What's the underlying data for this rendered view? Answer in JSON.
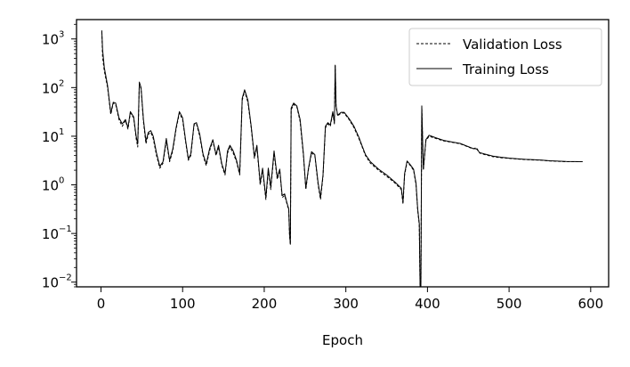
{
  "chart_data": {
    "type": "line",
    "xlabel": "Epoch",
    "ylabel": "",
    "title": "",
    "xlim": [
      -30,
      622
    ],
    "ylim": [
      0.008,
      2500
    ],
    "yscale": "log",
    "grid": false,
    "legend_position": "top-right",
    "x_ticks": [
      0,
      100,
      200,
      300,
      400,
      500,
      600
    ],
    "x_tick_labels": [
      "0",
      "100",
      "200",
      "300",
      "400",
      "500",
      "600"
    ],
    "y_ticks": [
      {
        "value": 0.01,
        "base": "10",
        "exp": "−2"
      },
      {
        "value": 0.1,
        "base": "10",
        "exp": "−1"
      },
      {
        "value": 1,
        "base": "10",
        "exp": "0"
      },
      {
        "value": 10,
        "base": "10",
        "exp": "1"
      },
      {
        "value": 100,
        "base": "10",
        "exp": "2"
      },
      {
        "value": 1000,
        "base": "10",
        "exp": "3"
      }
    ],
    "series": [
      {
        "name": "Validation Loss",
        "style": "dashed",
        "color": "#000000",
        "points": [
          [
            1,
            1400
          ],
          [
            2,
            420
          ],
          [
            4,
            220
          ],
          [
            8,
            100
          ],
          [
            12,
            28
          ],
          [
            15,
            48
          ],
          [
            18,
            45
          ],
          [
            22,
            22
          ],
          [
            26,
            16
          ],
          [
            30,
            21
          ],
          [
            33,
            14
          ],
          [
            36,
            30
          ],
          [
            40,
            24
          ],
          [
            43,
            9
          ],
          [
            45,
            6
          ],
          [
            47,
            120
          ],
          [
            49,
            95
          ],
          [
            52,
            20
          ],
          [
            55,
            7
          ],
          [
            58,
            11
          ],
          [
            61,
            12
          ],
          [
            64,
            9
          ],
          [
            68,
            4
          ],
          [
            72,
            2.2
          ],
          [
            76,
            2.8
          ],
          [
            80,
            8
          ],
          [
            84,
            3
          ],
          [
            88,
            5
          ],
          [
            92,
            14
          ],
          [
            96,
            30
          ],
          [
            100,
            22
          ],
          [
            104,
            7
          ],
          [
            107,
            3.2
          ],
          [
            110,
            4
          ],
          [
            114,
            17
          ],
          [
            117,
            18
          ],
          [
            121,
            10
          ],
          [
            125,
            4
          ],
          [
            129,
            2.5
          ],
          [
            133,
            5
          ],
          [
            137,
            8
          ],
          [
            141,
            4
          ],
          [
            144,
            6
          ],
          [
            148,
            2.5
          ],
          [
            152,
            1.6
          ],
          [
            155,
            4.5
          ],
          [
            158,
            6
          ],
          [
            162,
            4.5
          ],
          [
            166,
            3
          ],
          [
            170,
            1.6
          ],
          [
            173,
            55
          ],
          [
            176,
            85
          ],
          [
            180,
            50
          ],
          [
            184,
            15
          ],
          [
            188,
            3.5
          ],
          [
            191,
            6
          ],
          [
            195,
            1
          ],
          [
            198,
            2
          ],
          [
            202,
            0.5
          ],
          [
            205,
            2
          ],
          [
            208,
            0.8
          ],
          [
            212,
            4.5
          ],
          [
            216,
            1.3
          ],
          [
            219,
            2
          ],
          [
            222,
            0.55
          ],
          [
            225,
            0.6
          ],
          [
            228,
            0.4
          ],
          [
            230,
            0.3
          ],
          [
            231,
            0.09
          ],
          [
            232,
            0.06
          ],
          [
            233,
            35
          ],
          [
            236,
            45
          ],
          [
            240,
            40
          ],
          [
            244,
            20
          ],
          [
            248,
            4
          ],
          [
            251,
            0.8
          ],
          [
            254,
            2
          ],
          [
            258,
            4.5
          ],
          [
            262,
            4
          ],
          [
            266,
            1
          ],
          [
            269,
            0.5
          ],
          [
            272,
            1.5
          ],
          [
            275,
            15
          ],
          [
            278,
            18
          ],
          [
            281,
            16
          ],
          [
            284,
            30
          ],
          [
            286,
            18
          ],
          [
            287,
            280
          ],
          [
            288,
            40
          ],
          [
            290,
            26
          ],
          [
            294,
            30
          ],
          [
            298,
            30
          ],
          [
            304,
            22
          ],
          [
            310,
            15
          ],
          [
            316,
            9
          ],
          [
            320,
            6
          ],
          [
            324,
            4
          ],
          [
            330,
            2.8
          ],
          [
            340,
            2.0
          ],
          [
            350,
            1.5
          ],
          [
            360,
            1.1
          ],
          [
            368,
            0.8
          ],
          [
            370,
            0.4
          ],
          [
            372,
            1.6
          ],
          [
            375,
            3
          ],
          [
            379,
            2.5
          ],
          [
            383,
            2
          ],
          [
            386,
            1.0
          ],
          [
            388,
            0.3
          ],
          [
            390,
            0.15
          ],
          [
            391,
            0.008
          ],
          [
            392,
            0.008
          ],
          [
            393,
            40
          ],
          [
            395,
            2
          ],
          [
            398,
            8
          ],
          [
            402,
            10
          ],
          [
            410,
            9
          ],
          [
            420,
            8
          ],
          [
            430,
            7.5
          ],
          [
            440,
            7
          ],
          [
            450,
            6
          ],
          [
            456,
            5.5
          ],
          [
            460,
            5.8
          ],
          [
            464,
            4.5
          ],
          [
            470,
            4.2
          ],
          [
            480,
            3.8
          ],
          [
            490,
            3.6
          ],
          [
            500,
            3.5
          ],
          [
            510,
            3.4
          ],
          [
            520,
            3.3
          ],
          [
            530,
            3.25
          ],
          [
            540,
            3.2
          ],
          [
            550,
            3.1
          ],
          [
            560,
            3.05
          ],
          [
            570,
            3
          ],
          [
            580,
            3
          ],
          [
            590,
            3
          ]
        ]
      },
      {
        "name": "Training Loss",
        "style": "solid",
        "color": "#000000",
        "points": [
          [
            1,
            1500
          ],
          [
            2,
            600
          ],
          [
            4,
            260
          ],
          [
            8,
            110
          ],
          [
            12,
            30
          ],
          [
            15,
            50
          ],
          [
            18,
            48
          ],
          [
            22,
            24
          ],
          [
            26,
            18
          ],
          [
            30,
            22
          ],
          [
            33,
            15
          ],
          [
            36,
            32
          ],
          [
            40,
            25
          ],
          [
            43,
            10
          ],
          [
            45,
            7
          ],
          [
            47,
            130
          ],
          [
            49,
            100
          ],
          [
            52,
            22
          ],
          [
            55,
            8
          ],
          [
            58,
            12
          ],
          [
            61,
            13
          ],
          [
            64,
            10
          ],
          [
            68,
            4.5
          ],
          [
            72,
            2.4
          ],
          [
            76,
            3
          ],
          [
            80,
            9
          ],
          [
            84,
            3.2
          ],
          [
            88,
            5.5
          ],
          [
            92,
            15
          ],
          [
            96,
            32
          ],
          [
            100,
            24
          ],
          [
            104,
            7.5
          ],
          [
            107,
            3.4
          ],
          [
            110,
            4.3
          ],
          [
            114,
            18
          ],
          [
            117,
            19
          ],
          [
            121,
            11
          ],
          [
            125,
            4.3
          ],
          [
            129,
            2.7
          ],
          [
            133,
            5.5
          ],
          [
            137,
            8.5
          ],
          [
            141,
            4.2
          ],
          [
            144,
            6.5
          ],
          [
            148,
            2.7
          ],
          [
            152,
            1.7
          ],
          [
            155,
            5
          ],
          [
            158,
            6.5
          ],
          [
            162,
            5
          ],
          [
            166,
            3.2
          ],
          [
            170,
            1.7
          ],
          [
            173,
            60
          ],
          [
            176,
            90
          ],
          [
            180,
            55
          ],
          [
            184,
            16
          ],
          [
            188,
            3.8
          ],
          [
            191,
            6.5
          ],
          [
            195,
            1.1
          ],
          [
            198,
            2.2
          ],
          [
            202,
            0.55
          ],
          [
            205,
            2.2
          ],
          [
            208,
            0.9
          ],
          [
            212,
            5
          ],
          [
            216,
            1.4
          ],
          [
            219,
            2.1
          ],
          [
            222,
            0.6
          ],
          [
            225,
            0.65
          ],
          [
            228,
            0.42
          ],
          [
            230,
            0.32
          ],
          [
            231,
            0.1
          ],
          [
            232,
            0.06
          ],
          [
            233,
            38
          ],
          [
            236,
            48
          ],
          [
            240,
            42
          ],
          [
            244,
            22
          ],
          [
            248,
            4.3
          ],
          [
            251,
            0.85
          ],
          [
            254,
            2.1
          ],
          [
            258,
            4.8
          ],
          [
            262,
            4.2
          ],
          [
            266,
            1.1
          ],
          [
            269,
            0.55
          ],
          [
            272,
            1.6
          ],
          [
            275,
            16
          ],
          [
            278,
            19
          ],
          [
            281,
            17
          ],
          [
            284,
            32
          ],
          [
            286,
            19
          ],
          [
            287,
            290
          ],
          [
            288,
            42
          ],
          [
            290,
            27
          ],
          [
            294,
            31
          ],
          [
            298,
            31
          ],
          [
            304,
            23
          ],
          [
            310,
            16
          ],
          [
            316,
            9.5
          ],
          [
            320,
            6.3
          ],
          [
            324,
            4.2
          ],
          [
            330,
            3
          ],
          [
            340,
            2.1
          ],
          [
            350,
            1.6
          ],
          [
            360,
            1.15
          ],
          [
            368,
            0.85
          ],
          [
            370,
            0.45
          ],
          [
            372,
            1.7
          ],
          [
            375,
            3.1
          ],
          [
            379,
            2.6
          ],
          [
            383,
            2.1
          ],
          [
            386,
            1.1
          ],
          [
            388,
            0.32
          ],
          [
            390,
            0.16
          ],
          [
            391,
            0.008
          ],
          [
            392,
            0.008
          ],
          [
            393,
            42
          ],
          [
            395,
            2.1
          ],
          [
            398,
            8.5
          ],
          [
            402,
            10.5
          ],
          [
            410,
            9.3
          ],
          [
            420,
            8.2
          ],
          [
            430,
            7.6
          ],
          [
            440,
            7.1
          ],
          [
            450,
            6.1
          ],
          [
            456,
            5.6
          ],
          [
            460,
            5.5
          ],
          [
            464,
            4.6
          ],
          [
            470,
            4.3
          ],
          [
            480,
            3.9
          ],
          [
            490,
            3.7
          ],
          [
            500,
            3.55
          ],
          [
            510,
            3.45
          ],
          [
            520,
            3.35
          ],
          [
            530,
            3.3
          ],
          [
            540,
            3.22
          ],
          [
            550,
            3.12
          ],
          [
            560,
            3.07
          ],
          [
            570,
            3.02
          ],
          [
            580,
            3.01
          ],
          [
            590,
            3.0
          ]
        ]
      }
    ]
  }
}
